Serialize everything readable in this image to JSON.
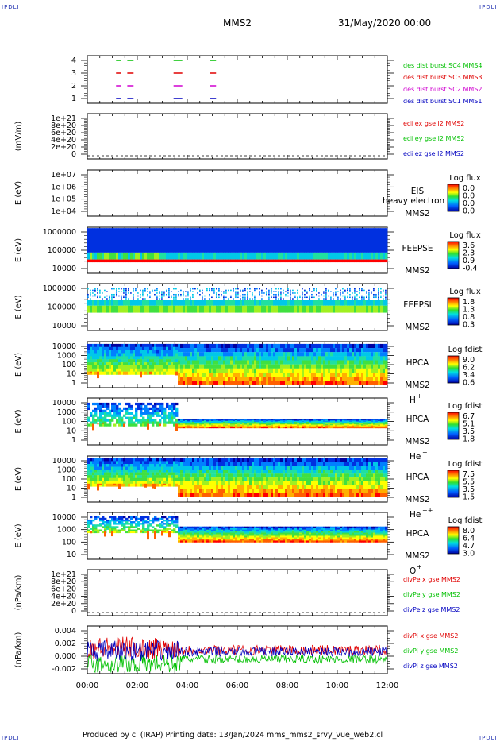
{
  "header": {
    "corner_label": "IPDLI",
    "spacecraft": "MMS2",
    "date_time": "31/May/2020 00:00"
  },
  "footer": {
    "text": "Produced by cl (IRAP)   Printing date: 13/Jan/2024   mms_mms2_srvy_vue_web2.cl"
  },
  "colors": {
    "red": "#e00000",
    "magenta": "#d000d0",
    "green": "#00c000",
    "blue": "#0000c0",
    "axis": "#000000"
  },
  "chart_data": [
    {
      "type": "scatter",
      "panel": "burst",
      "ylim": [
        0.5,
        4.5
      ],
      "yticks": [
        "4",
        "3",
        "2",
        "1"
      ],
      "xlim": [
        0,
        12
      ],
      "series": [
        {
          "name": "des dist burst SC1 MMS1",
          "color": "#0000c0",
          "level": 1,
          "intervals": [
            [
              1.15,
              1.35
            ],
            [
              1.6,
              1.85
            ],
            [
              3.45,
              3.8
            ],
            [
              4.9,
              5.15
            ]
          ]
        },
        {
          "name": "des dist burst SC2 MMS2",
          "color": "#d000d0",
          "level": 2,
          "intervals": [
            [
              1.15,
              1.35
            ],
            [
              1.6,
              1.85
            ],
            [
              3.45,
              3.8
            ],
            [
              4.9,
              5.15
            ]
          ]
        },
        {
          "name": "des dist burst SC3 MMS3",
          "color": "#e00000",
          "level": 3,
          "intervals": [
            [
              1.15,
              1.35
            ],
            [
              1.6,
              1.85
            ],
            [
              3.45,
              3.8
            ],
            [
              4.9,
              5.15
            ]
          ]
        },
        {
          "name": "des dist burst SC4 MMS4",
          "color": "#00c000",
          "level": 4,
          "intervals": [
            [
              1.15,
              1.35
            ],
            [
              1.6,
              1.85
            ],
            [
              3.45,
              3.8
            ],
            [
              4.9,
              5.15
            ]
          ]
        }
      ]
    },
    {
      "type": "line",
      "panel": "edi",
      "ylabel": "(mV/m)",
      "yticks": [
        "1e+21",
        "8e+20",
        "6e+20",
        "4e+20",
        "2e+20",
        "0"
      ],
      "ylim": [
        0,
        1e+21
      ],
      "series": [
        {
          "name": "edi ex gse l2 MMS2",
          "color": "#e00000"
        },
        {
          "name": "edi ey gse l2 MMS2",
          "color": "#00c000"
        },
        {
          "name": "edi ez gse l2 MMS2",
          "color": "#0000c0"
        }
      ]
    },
    {
      "type": "heatmap",
      "panel": "eis",
      "ylabel": "E (eV)",
      "yticks": [
        "1e+07",
        "1e+06",
        "1e+05",
        "1e+04"
      ],
      "ylim": [
        10000.0,
        10000000.0
      ],
      "instrument": [
        "EIS",
        "MMS2"
      ],
      "overlay_text": "heavy electron to",
      "colorbar_title": "Log flux",
      "colorbar_ticks": [
        "0.0",
        "0.0",
        "0.0",
        "0.0"
      ]
    },
    {
      "type": "heatmap",
      "panel": "feepse",
      "ylabel": "E (eV)",
      "yticks": [
        "1000000",
        "100000",
        "10000"
      ],
      "ylim": [
        10000.0,
        1000000.0
      ],
      "instrument": [
        "FEEPSE",
        "MMS2"
      ],
      "colorbar_title": "Log flux",
      "colorbar_ticks": [
        "3.6",
        "2.3",
        "0.9",
        "-0.4"
      ]
    },
    {
      "type": "heatmap",
      "panel": "feepsi",
      "ylabel": "E (eV)",
      "yticks": [
        "1000000",
        "100000",
        "10000"
      ],
      "ylim": [
        10000.0,
        1000000.0
      ],
      "instrument": [
        "FEEPSI",
        "MMS2"
      ],
      "colorbar_title": "Log flux",
      "colorbar_ticks": [
        "1.8",
        "1.3",
        "0.8",
        "0.3"
      ]
    },
    {
      "type": "heatmap",
      "panel": "hpca_h",
      "ylabel": "E (eV)",
      "yticks": [
        "10000",
        "1000",
        "100",
        "10",
        "1"
      ],
      "ylim": [
        1,
        30000.0
      ],
      "instrument": [
        "HPCA",
        "MMS2"
      ],
      "species": "H",
      "charge": "+",
      "colorbar_title": "Log fdist",
      "colorbar_ticks": [
        "9.0",
        "6.2",
        "3.4",
        "0.6"
      ]
    },
    {
      "type": "heatmap",
      "panel": "hpca_he1",
      "ylabel": "E (eV)",
      "yticks": [
        "10000",
        "1000",
        "100",
        "10",
        "1"
      ],
      "ylim": [
        1,
        30000.0
      ],
      "instrument": [
        "HPCA",
        "MMS2"
      ],
      "species": "He",
      "charge": "+",
      "colorbar_title": "Log fdist",
      "colorbar_ticks": [
        "6.7",
        "5.1",
        "3.5",
        "1.8"
      ]
    },
    {
      "type": "heatmap",
      "panel": "hpca_he2",
      "ylabel": "E (eV)",
      "yticks": [
        "10000",
        "1000",
        "100",
        "10",
        "1"
      ],
      "ylim": [
        1,
        30000.0
      ],
      "instrument": [
        "HPCA",
        "MMS2"
      ],
      "species": "He",
      "charge": "++",
      "colorbar_title": "Log fdist",
      "colorbar_ticks": [
        "7.5",
        "5.5",
        "3.5",
        "1.5"
      ]
    },
    {
      "type": "heatmap",
      "panel": "hpca_o",
      "ylabel": "E (eV)",
      "yticks": [
        "10000",
        "1000",
        "100",
        "10"
      ],
      "ylim": [
        3,
        30000.0
      ],
      "instrument": [
        "HPCA",
        "MMS2"
      ],
      "species": "O",
      "charge": "+",
      "colorbar_title": "Log fdist",
      "colorbar_ticks": [
        "8.0",
        "6.4",
        "4.7",
        "3.0"
      ]
    },
    {
      "type": "line",
      "panel": "divpe",
      "ylabel": "(nPa/km)",
      "yticks": [
        "1e+21",
        "8e+20",
        "6e+20",
        "4e+20",
        "2e+20",
        "0"
      ],
      "ylim": [
        0,
        1e+21
      ],
      "series": [
        {
          "name": "divPe x gse MMS2",
          "color": "#e00000"
        },
        {
          "name": "divPe y gse MMS2",
          "color": "#00c000"
        },
        {
          "name": "divPe z gse MMS2",
          "color": "#0000c0"
        }
      ]
    },
    {
      "type": "line",
      "panel": "divpi",
      "ylabel": "(nPa/km)",
      "yticks": [
        "0.004",
        "0.002",
        "0.000",
        "-0.002"
      ],
      "ylim": [
        -0.0035,
        0.0045
      ],
      "series": [
        {
          "name": "divPi x gse MMS2",
          "color": "#e00000"
        },
        {
          "name": "divPi y gse MMS2",
          "color": "#00c000"
        },
        {
          "name": "divPi z gse MMS2",
          "color": "#0000c0"
        }
      ]
    }
  ],
  "x_axis": {
    "xlim": [
      0,
      12
    ],
    "ticks": [
      "00:00",
      "02:00",
      "04:00",
      "06:00",
      "08:00",
      "10:00",
      "12:00"
    ]
  }
}
